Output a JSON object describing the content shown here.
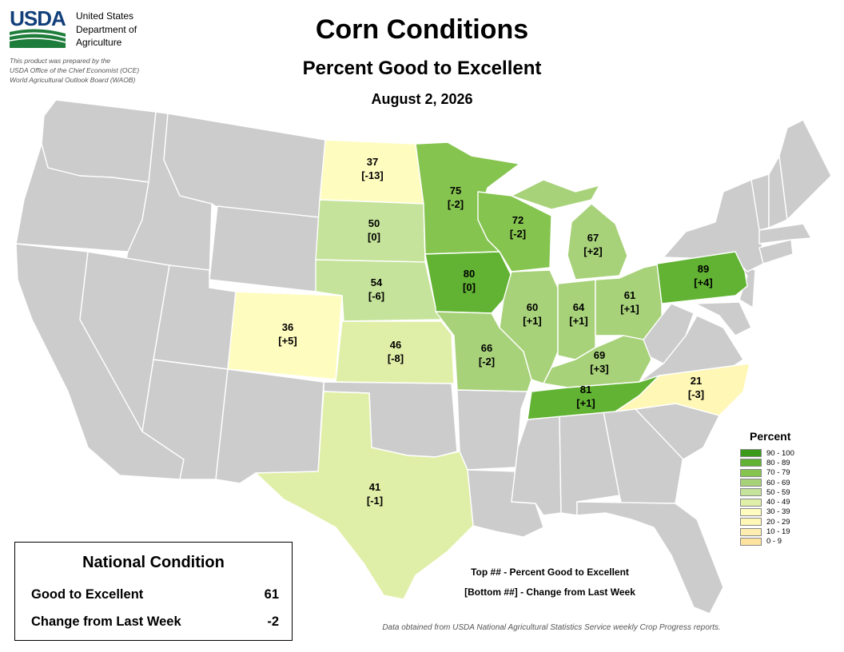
{
  "header": {
    "logo_text": "USDA",
    "agency_lines": [
      "United States",
      "Department of",
      "Agriculture"
    ],
    "credit_lines": [
      "This product was prepared by the",
      "USDA Office of the Chief Economist (OCE)",
      "World Agricultural Outlook Board (WAOB)"
    ],
    "title": "Corn Conditions",
    "subtitle": "Percent Good to Excellent",
    "date": "August 2, 2026"
  },
  "colors": {
    "no_data": "#cccccc",
    "90-100": "#3a9a1a",
    "80-89": "#62b334",
    "70-79": "#86c450",
    "60-69": "#a8d27a",
    "50-59": "#c5e39a",
    "40-49": "#e0efa8",
    "30-39": "#fffcc0",
    "20-29": "#fff7b6",
    "10-19": "#ffeeb0",
    "0-9": "#fde3a0"
  },
  "chart_data": {
    "type": "choropleth",
    "states": [
      {
        "state": "North Dakota",
        "value": "37",
        "change": "[-13]"
      },
      {
        "state": "Minnesota",
        "value": "75",
        "change": "[-2]"
      },
      {
        "state": "South Dakota",
        "value": "50",
        "change": "[0]"
      },
      {
        "state": "Wisconsin",
        "value": "72",
        "change": "[-2]"
      },
      {
        "state": "Michigan",
        "value": "67",
        "change": "[+2]"
      },
      {
        "state": "Iowa",
        "value": "80",
        "change": "[0]"
      },
      {
        "state": "Nebraska",
        "value": "54",
        "change": "[-6]"
      },
      {
        "state": "Pennsylvania",
        "value": "89",
        "change": "[+4]"
      },
      {
        "state": "Colorado",
        "value": "36",
        "change": "[+5]"
      },
      {
        "state": "Illinois",
        "value": "60",
        "change": "[+1]"
      },
      {
        "state": "Indiana",
        "value": "64",
        "change": "[+1]"
      },
      {
        "state": "Ohio",
        "value": "61",
        "change": "[+1]"
      },
      {
        "state": "Kansas",
        "value": "46",
        "change": "[-8]"
      },
      {
        "state": "Missouri",
        "value": "66",
        "change": "[-2]"
      },
      {
        "state": "Kentucky",
        "value": "69",
        "change": "[+3]"
      },
      {
        "state": "Tennessee",
        "value": "81",
        "change": "[+1]"
      },
      {
        "state": "North Carolina",
        "value": "21",
        "change": "[-3]"
      },
      {
        "state": "Texas",
        "value": "41",
        "change": "[-1]"
      }
    ]
  },
  "legend": {
    "title": "Percent",
    "items": [
      {
        "label": "90 - 100",
        "color": "#3a9a1a"
      },
      {
        "label": "80 - 89",
        "color": "#62b334"
      },
      {
        "label": "70 - 79",
        "color": "#86c450"
      },
      {
        "label": "60 - 69",
        "color": "#a8d27a"
      },
      {
        "label": "50 - 59",
        "color": "#c5e39a"
      },
      {
        "label": "40 - 49",
        "color": "#e0efa8"
      },
      {
        "label": "30 - 39",
        "color": "#fffcc0"
      },
      {
        "label": "20 - 29",
        "color": "#fff7b6"
      },
      {
        "label": "10 - 19",
        "color": "#ffeeb0"
      },
      {
        "label": "0 - 9",
        "color": "#fde3a0"
      }
    ]
  },
  "national": {
    "title": "National Condition",
    "good_excellent_label": "Good to Excellent",
    "good_excellent_value": "61",
    "change_label": "Change from Last Week",
    "change_value": "-2"
  },
  "notes": {
    "top": "Top ## - Percent Good to Excellent",
    "bottom": "[Bottom ##] - Change from Last Week",
    "source": "Data obtained from USDA National Agricultural Statistics Service weekly Crop Progress reports."
  }
}
